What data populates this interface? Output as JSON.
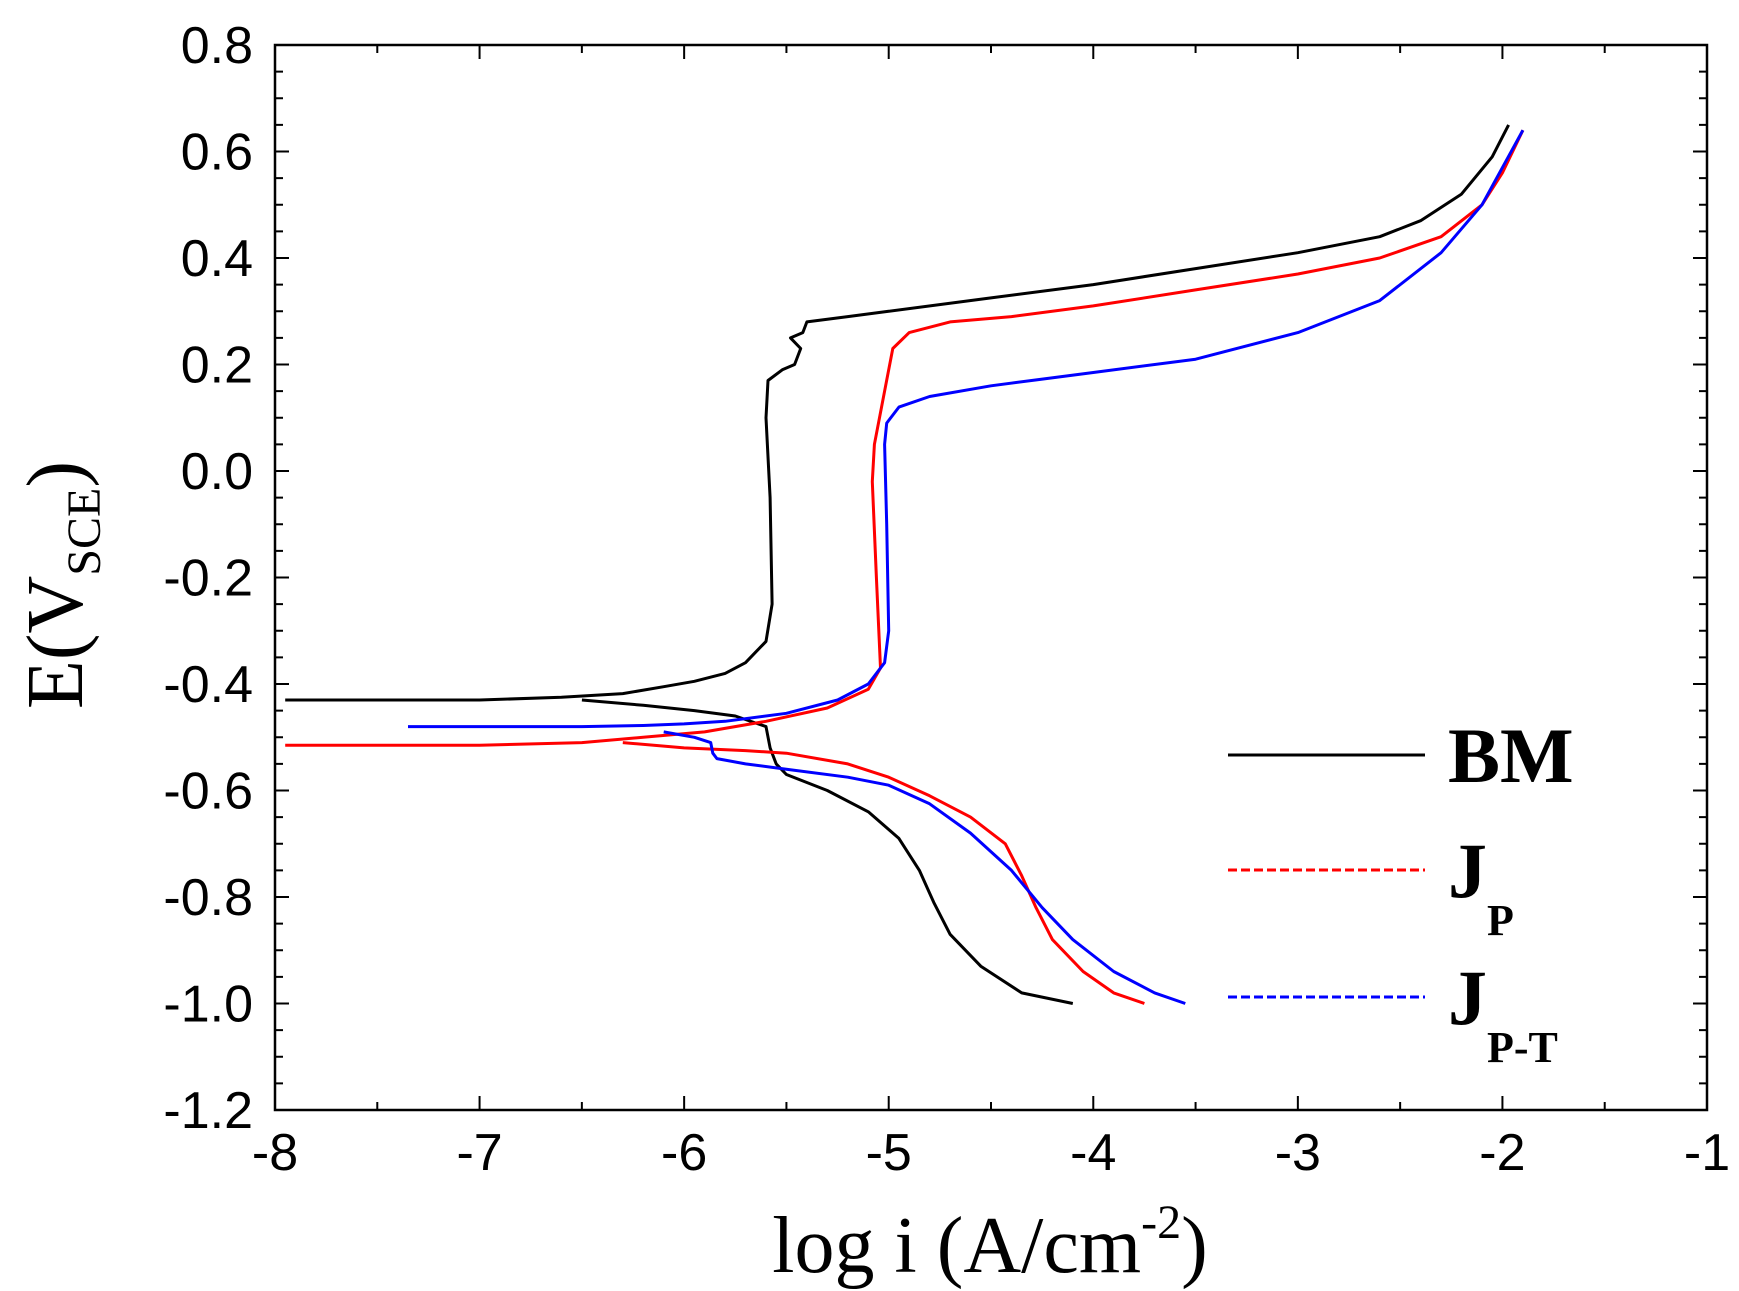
{
  "chart_data": {
    "type": "line",
    "title": "",
    "xlabel": "log i (A/cm",
    "xlabel_sup": "-2",
    "xlabel_close": ")",
    "ylabel": "E(V",
    "ylabel_sub": "SCE",
    "ylabel_close": ")",
    "xlim": [
      -8,
      -1
    ],
    "ylim": [
      -1.2,
      0.8
    ],
    "xticks": [
      "-8",
      "-7",
      "-6",
      "-5",
      "-4",
      "-3",
      "-2",
      "-1"
    ],
    "yticks": [
      "0.8",
      "0.6",
      "0.4",
      "0.2",
      "0.0",
      "-0.2",
      "-0.4",
      "-0.6",
      "-0.8",
      "-1.0",
      "-1.2"
    ],
    "legend_position": "lower-right",
    "series": [
      {
        "name": "BM",
        "name_sub": "",
        "color": "#000000",
        "dash": "solid",
        "points": [
          [
            -7.95,
            -0.43
          ],
          [
            -7.5,
            -0.43
          ],
          [
            -7.0,
            -0.43
          ],
          [
            -6.6,
            -0.425
          ],
          [
            -6.3,
            -0.418
          ],
          [
            -6.1,
            -0.405
          ],
          [
            -5.95,
            -0.395
          ],
          [
            -5.8,
            -0.38
          ],
          [
            -5.7,
            -0.36
          ],
          [
            -5.65,
            -0.34
          ],
          [
            -5.6,
            -0.32
          ],
          [
            -5.57,
            -0.25
          ],
          [
            -5.58,
            -0.05
          ],
          [
            -5.6,
            0.1
          ],
          [
            -5.59,
            0.17
          ],
          [
            -5.52,
            0.19
          ],
          [
            -5.46,
            0.2
          ],
          [
            -5.43,
            0.23
          ],
          [
            -5.48,
            0.25
          ],
          [
            -5.42,
            0.26
          ],
          [
            -5.4,
            0.28
          ],
          [
            -5.2,
            0.29
          ],
          [
            -5.0,
            0.3
          ],
          [
            -4.5,
            0.325
          ],
          [
            -4.0,
            0.35
          ],
          [
            -3.5,
            0.38
          ],
          [
            -3.0,
            0.41
          ],
          [
            -2.6,
            0.44
          ],
          [
            -2.4,
            0.47
          ],
          [
            -2.2,
            0.52
          ],
          [
            -2.05,
            0.59
          ],
          [
            -1.97,
            0.65
          ]
        ],
        "points2": [
          [
            -6.5,
            -0.43
          ],
          [
            -6.2,
            -0.44
          ],
          [
            -5.95,
            -0.45
          ],
          [
            -5.75,
            -0.46
          ],
          [
            -5.6,
            -0.48
          ],
          [
            -5.58,
            -0.52
          ],
          [
            -5.55,
            -0.55
          ],
          [
            -5.5,
            -0.57
          ],
          [
            -5.3,
            -0.6
          ],
          [
            -5.1,
            -0.64
          ],
          [
            -4.95,
            -0.69
          ],
          [
            -4.85,
            -0.75
          ],
          [
            -4.78,
            -0.81
          ],
          [
            -4.7,
            -0.87
          ],
          [
            -4.55,
            -0.93
          ],
          [
            -4.35,
            -0.98
          ],
          [
            -4.1,
            -1.0
          ]
        ]
      },
      {
        "name": "J",
        "name_sub": "P",
        "color": "#ff0000",
        "dash": "dashed",
        "points": [
          [
            -7.95,
            -0.515
          ],
          [
            -7.0,
            -0.515
          ],
          [
            -6.5,
            -0.51
          ],
          [
            -6.2,
            -0.5
          ],
          [
            -5.9,
            -0.49
          ],
          [
            -5.6,
            -0.47
          ],
          [
            -5.3,
            -0.445
          ],
          [
            -5.1,
            -0.41
          ],
          [
            -5.04,
            -0.37
          ],
          [
            -5.06,
            -0.2
          ],
          [
            -5.08,
            -0.02
          ],
          [
            -5.07,
            0.05
          ],
          [
            -5.02,
            0.15
          ],
          [
            -4.98,
            0.23
          ],
          [
            -4.9,
            0.26
          ],
          [
            -4.7,
            0.28
          ],
          [
            -4.4,
            0.29
          ],
          [
            -4.0,
            0.31
          ],
          [
            -3.5,
            0.34
          ],
          [
            -3.0,
            0.37
          ],
          [
            -2.6,
            0.4
          ],
          [
            -2.3,
            0.44
          ],
          [
            -2.1,
            0.5
          ],
          [
            -2.0,
            0.56
          ],
          [
            -1.9,
            0.64
          ]
        ],
        "points2": [
          [
            -6.3,
            -0.51
          ],
          [
            -6.0,
            -0.52
          ],
          [
            -5.7,
            -0.525
          ],
          [
            -5.5,
            -0.53
          ],
          [
            -5.2,
            -0.55
          ],
          [
            -5.0,
            -0.575
          ],
          [
            -4.8,
            -0.61
          ],
          [
            -4.6,
            -0.65
          ],
          [
            -4.43,
            -0.7
          ],
          [
            -4.35,
            -0.76
          ],
          [
            -4.28,
            -0.82
          ],
          [
            -4.2,
            -0.88
          ],
          [
            -4.05,
            -0.94
          ],
          [
            -3.9,
            -0.98
          ],
          [
            -3.75,
            -1.0
          ]
        ]
      },
      {
        "name": "J",
        "name_sub": "P-T",
        "color": "#0000ff",
        "dash": "dashed",
        "points": [
          [
            -7.35,
            -0.48
          ],
          [
            -7.0,
            -0.48
          ],
          [
            -6.5,
            -0.48
          ],
          [
            -6.2,
            -0.478
          ],
          [
            -6.0,
            -0.475
          ],
          [
            -5.8,
            -0.47
          ],
          [
            -5.5,
            -0.455
          ],
          [
            -5.25,
            -0.43
          ],
          [
            -5.1,
            -0.4
          ],
          [
            -5.02,
            -0.36
          ],
          [
            -5.0,
            -0.3
          ],
          [
            -5.01,
            -0.1
          ],
          [
            -5.02,
            0.05
          ],
          [
            -5.01,
            0.09
          ],
          [
            -4.95,
            0.12
          ],
          [
            -4.8,
            0.14
          ],
          [
            -4.5,
            0.16
          ],
          [
            -4.0,
            0.185
          ],
          [
            -3.5,
            0.21
          ],
          [
            -3.0,
            0.26
          ],
          [
            -2.6,
            0.32
          ],
          [
            -2.3,
            0.41
          ],
          [
            -2.1,
            0.5
          ],
          [
            -1.9,
            0.64
          ]
        ],
        "points2": [
          [
            -6.1,
            -0.49
          ],
          [
            -5.95,
            -0.5
          ],
          [
            -5.87,
            -0.51
          ],
          [
            -5.86,
            -0.53
          ],
          [
            -5.84,
            -0.54
          ],
          [
            -5.7,
            -0.55
          ],
          [
            -5.5,
            -0.56
          ],
          [
            -5.2,
            -0.575
          ],
          [
            -5.0,
            -0.59
          ],
          [
            -4.8,
            -0.625
          ],
          [
            -4.6,
            -0.68
          ],
          [
            -4.4,
            -0.75
          ],
          [
            -4.25,
            -0.82
          ],
          [
            -4.1,
            -0.88
          ],
          [
            -3.9,
            -0.94
          ],
          [
            -3.7,
            -0.98
          ],
          [
            -3.55,
            -1.0
          ]
        ]
      }
    ]
  }
}
